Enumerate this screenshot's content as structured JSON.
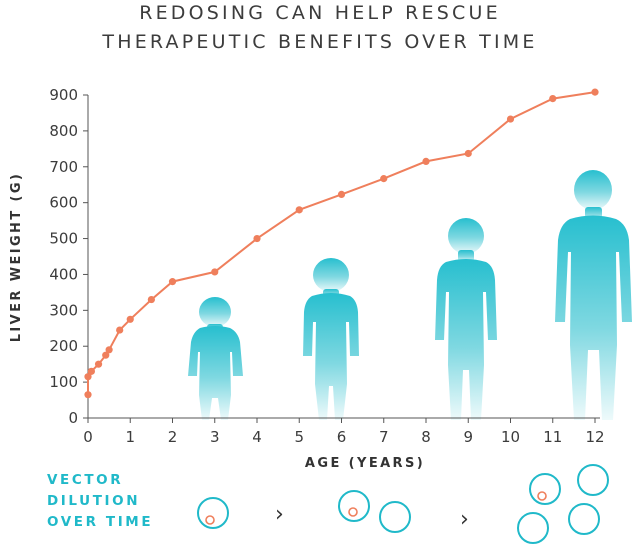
{
  "title_lines": [
    "REDOSING CAN HELP RESCUE",
    "THERAPEUTIC BENEFITS OVER TIME"
  ],
  "colors": {
    "line": "#ef7f5c",
    "accent": "#20b9c9",
    "silhouette_top": "#27bfcf",
    "silhouette_bottom": "#eefafb",
    "text": "#3c3c3c"
  },
  "chart_data": {
    "type": "line",
    "title": "REDOSING CAN HELP RESCUE THERAPEUTIC BENEFITS OVER TIME",
    "xlabel": "AGE (YEARS)",
    "ylabel": "LIVER WEIGHT (G)",
    "xlim": [
      0,
      12
    ],
    "ylim": [
      0,
      900
    ],
    "xticks": [
      0,
      1,
      2,
      3,
      4,
      5,
      6,
      7,
      8,
      9,
      10,
      11,
      12
    ],
    "yticks": [
      0,
      100,
      200,
      300,
      400,
      500,
      600,
      700,
      800,
      900
    ],
    "grid": false,
    "series": [
      {
        "x": [
          0,
          0,
          0.08,
          0.25,
          0.42,
          0.5,
          0.75,
          1,
          1.5,
          2,
          3,
          4,
          5,
          6,
          7,
          8,
          9,
          10,
          11,
          12
        ],
        "values": [
          65,
          115,
          130,
          150,
          175,
          190,
          245,
          275,
          330,
          380,
          407,
          500,
          580,
          623,
          667,
          715,
          737,
          833,
          890,
          908
        ]
      }
    ]
  },
  "vector_dilution": {
    "label_lines": [
      "VECTOR",
      "DILUTION",
      "OVER TIME"
    ],
    "separator_glyph": "›"
  }
}
